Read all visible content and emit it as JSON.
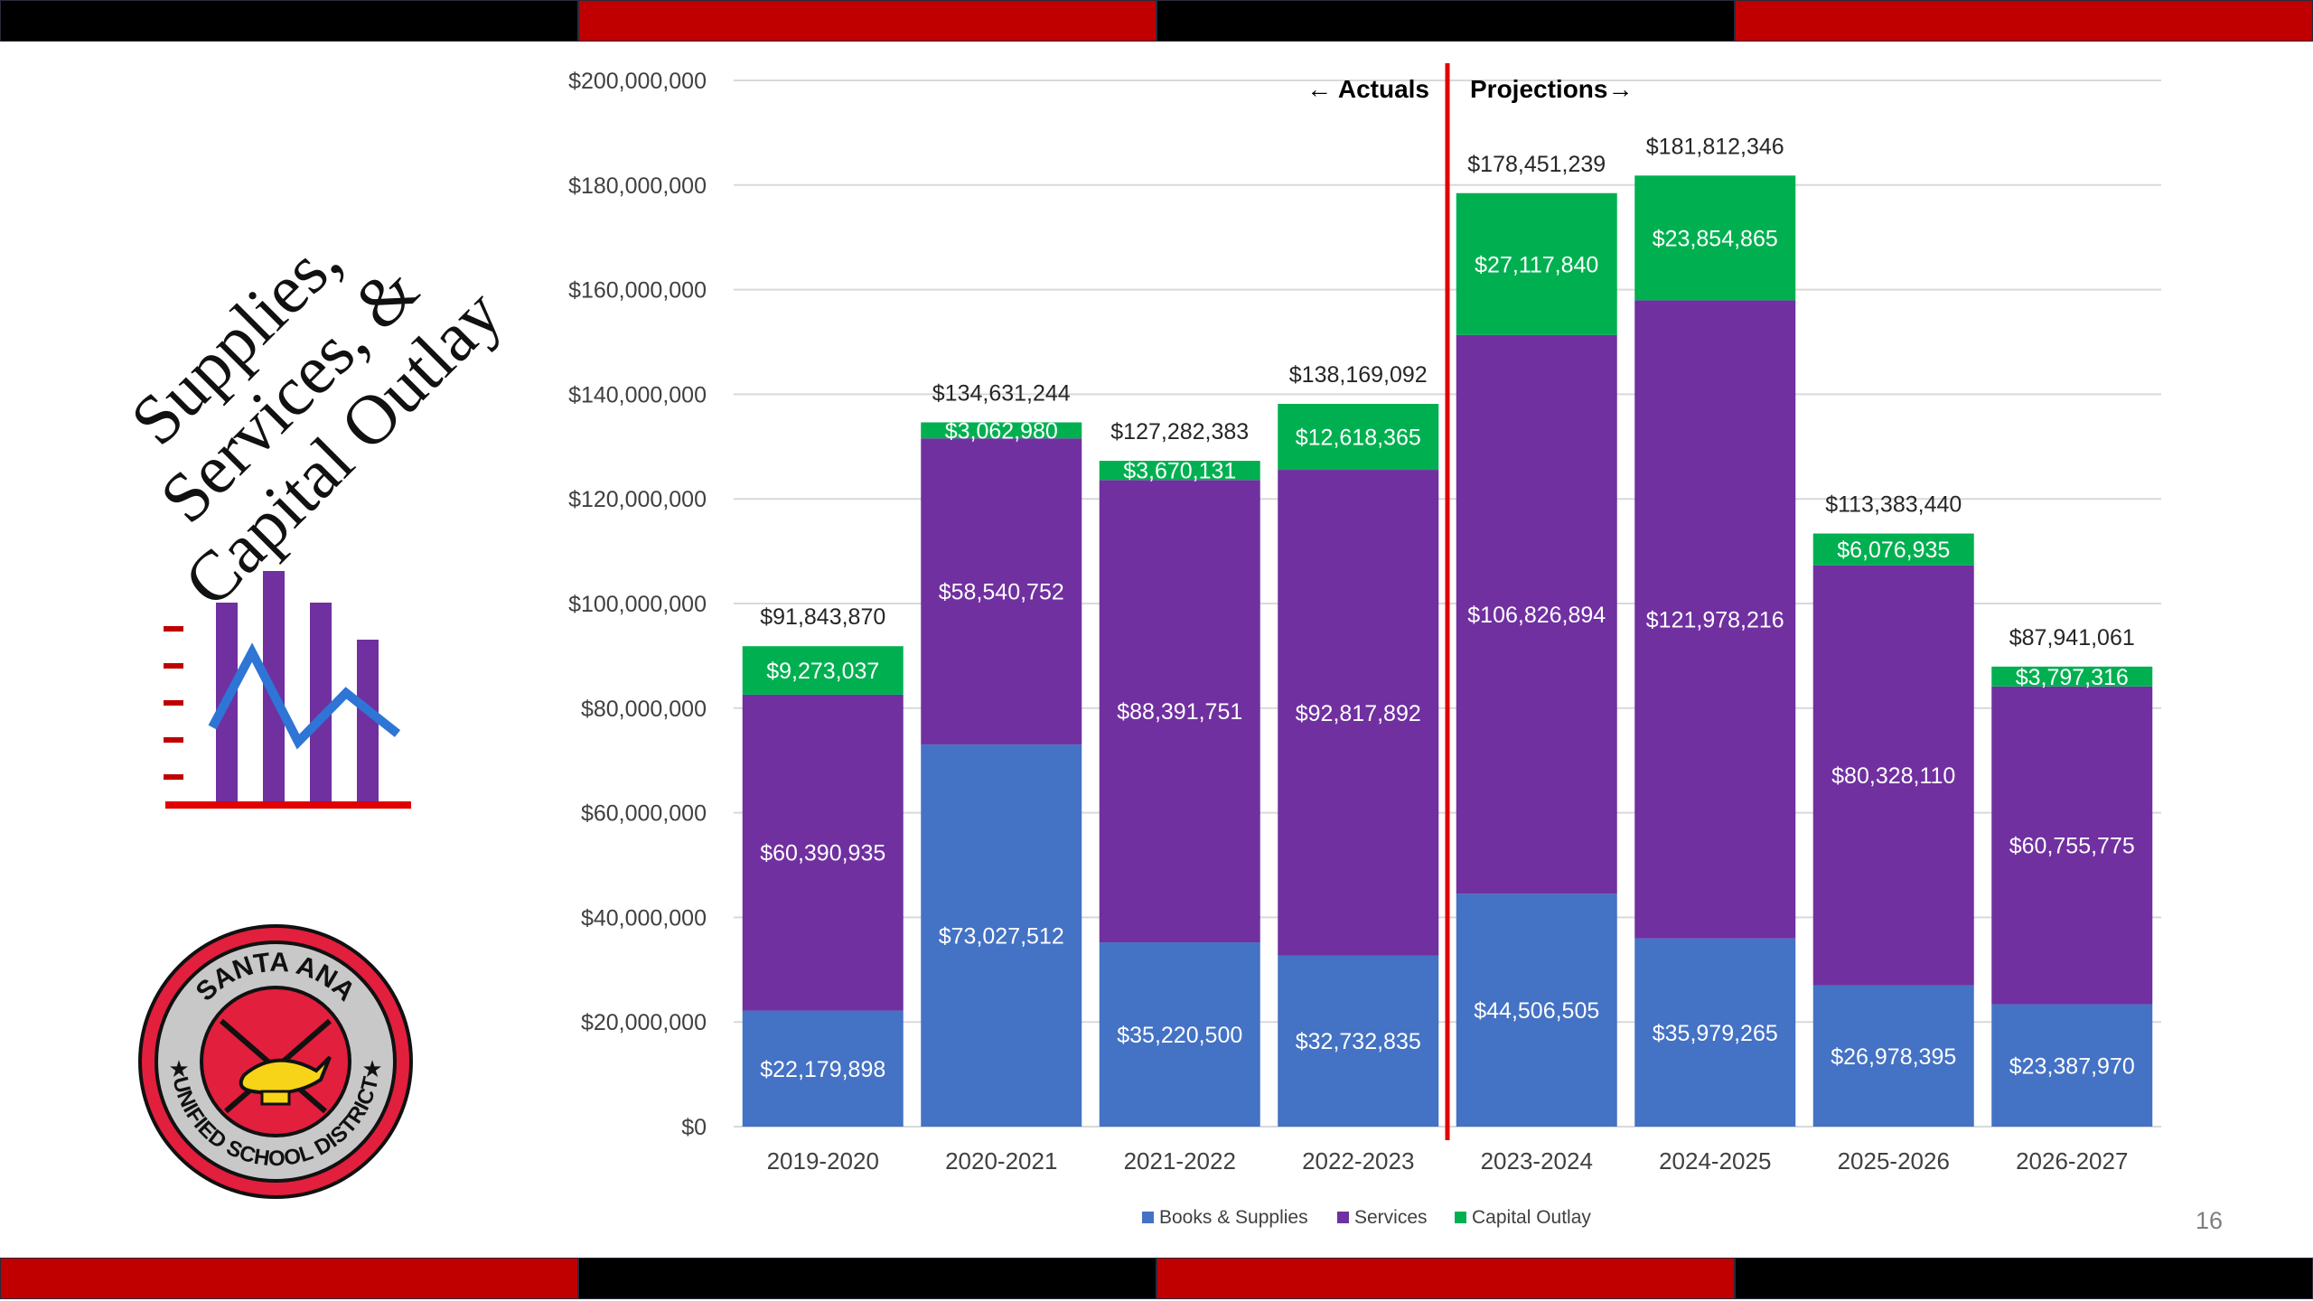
{
  "slide": {
    "title_lines": [
      "Supplies,",
      "Services, &",
      "Capital Outlay"
    ],
    "page_number": "16",
    "band_colors": {
      "black": "#000000",
      "red": "#c00000"
    }
  },
  "logo": {
    "text_top": "SANTA ANA",
    "text_bottom": "UNIFIED SCHOOL DISTRICT",
    "colors": {
      "ring": "#e21f3d",
      "outer": "#111111",
      "band": "#c8c8c8",
      "lamp": "#f7d417"
    }
  },
  "icons": [
    "bar-line-chart-icon",
    "school-district-seal"
  ],
  "chart_data": {
    "type": "bar",
    "stacked": true,
    "categories": [
      "2019-2020",
      "2020-2021",
      "2021-2022",
      "2022-2023",
      "2023-2024",
      "2024-2025",
      "2025-2026",
      "2026-2027"
    ],
    "series": [
      {
        "name": "Books & Supplies",
        "color": "#4472c4",
        "values": [
          22179898,
          73027512,
          35220500,
          32732835,
          44506505,
          35979265,
          26978395,
          23387970
        ],
        "labels": [
          "$22,179,898",
          "$73,027,512",
          "$35,220,500",
          "$32,732,835",
          "$44,506,505",
          "$35,979,265",
          "$26,978,395",
          "$23,387,970"
        ]
      },
      {
        "name": "Services",
        "color": "#7030a0",
        "values": [
          60390935,
          58540752,
          88391751,
          92817892,
          106826894,
          121978216,
          80328110,
          60755775
        ],
        "labels": [
          "$60,390,935",
          "$58,540,752",
          "$88,391,751",
          "$92,817,892",
          "$106,826,894",
          "$121,978,216",
          "$80,328,110",
          "$60,755,775"
        ]
      },
      {
        "name": "Capital Outlay",
        "color": "#00b050",
        "values": [
          9273037,
          3062980,
          3670131,
          12618365,
          27117840,
          23854865,
          6076935,
          3797316
        ],
        "labels": [
          "$9,273,037",
          "$3,062,980",
          "$3,670,131",
          "$12,618,365",
          "$27,117,840",
          "$23,854,865",
          "$6,076,935",
          "$3,797,316"
        ]
      }
    ],
    "totals": [
      91843870,
      134631244,
      127282383,
      138169092,
      178451239,
      181812346,
      113383440,
      87941061
    ],
    "total_labels": [
      "$91,843,870",
      "$134,631,244",
      "$127,282,383",
      "$138,169,092",
      "$178,451,239",
      "$181,812,346",
      "$113,383,440",
      "$87,941,061"
    ],
    "ylim": [
      0,
      200000000
    ],
    "yticks": [
      0,
      20000000,
      40000000,
      60000000,
      80000000,
      100000000,
      120000000,
      140000000,
      160000000,
      180000000,
      200000000
    ],
    "ytick_labels": [
      "$0",
      "$20,000,000",
      "$40,000,000",
      "$60,000,000",
      "$80,000,000",
      "$100,000,000",
      "$120,000,000",
      "$140,000,000",
      "$160,000,000",
      "$180,000,000",
      "$200,000,000"
    ],
    "grid": true,
    "legend_position": "bottom",
    "divider": {
      "after_category": "2022-2023",
      "color": "#e00000"
    },
    "annotations": {
      "left": "Actuals",
      "right": "Projections"
    },
    "gridline_color": "#d9d9d9",
    "tick_label_color": "#404040"
  }
}
